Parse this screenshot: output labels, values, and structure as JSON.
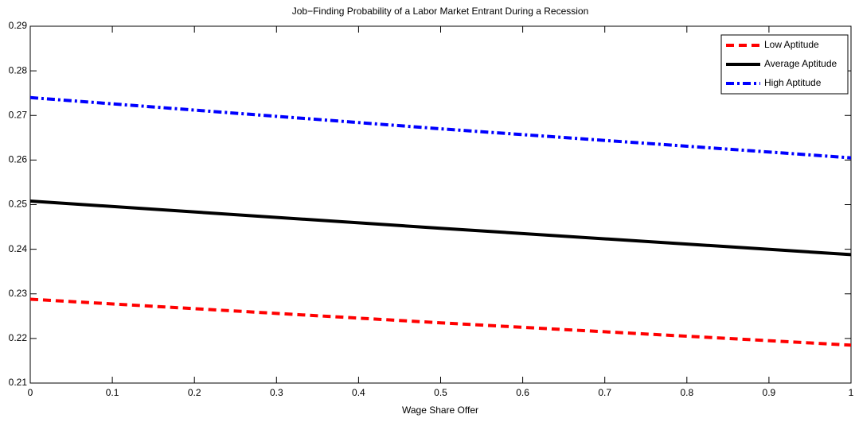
{
  "chart_data": {
    "type": "line",
    "title": "Job−Finding Probability of a Labor Market Entrant During a Recession",
    "x_label": "Wage Share Offer",
    "x": [
      0,
      0.5,
      1
    ],
    "series": [
      {
        "name": "Low Aptitude",
        "color": "#ff0000",
        "style": "dashed",
        "values": [
          0.2288,
          0.2235,
          0.2185
        ]
      },
      {
        "name": "Average Aptitude",
        "color": "#000000",
        "style": "solid",
        "values": [
          0.2508,
          0.2447,
          0.2388
        ]
      },
      {
        "name": "High Aptitude",
        "color": "#0000ff",
        "style": "dashdot",
        "values": [
          0.274,
          0.267,
          0.2605
        ]
      }
    ],
    "xlim": [
      0,
      1
    ],
    "xticks": [
      0,
      0.1,
      0.2,
      0.3,
      0.4,
      0.5,
      0.6,
      0.7,
      0.8,
      0.9,
      1
    ],
    "ylim": [
      0.21,
      0.29
    ],
    "yticks": [
      0.21,
      0.22,
      0.23,
      0.24,
      0.25,
      0.26,
      0.27,
      0.28,
      0.29
    ],
    "legend": "top-right"
  }
}
